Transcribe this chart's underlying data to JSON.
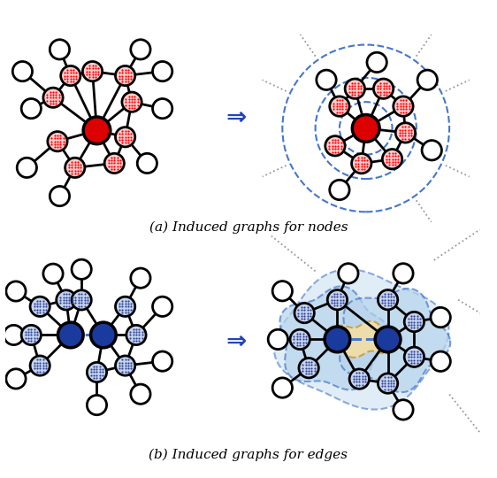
{
  "fig_width": 5.62,
  "fig_height": 5.4,
  "label_a": "(a) Induced graphs for nodes",
  "label_b": "(b) Induced graphs for edges",
  "red_center_color": "#dd0000",
  "red_node_face": "#ffcccc",
  "blue_center_color": "#1a3a9e",
  "blue_node_face": "#c5d5ee",
  "white_node_face": "#ffffff",
  "edge_black": "#111111",
  "circle_blue": "#4477cc",
  "arrow_blue": "#2244bb",
  "gray_dot": "#999999",
  "blob_outer": "#cce0f0",
  "blob_inner": "#b8d4ec",
  "blob_edge": "#4477cc",
  "yellow_face": "#f5dfa0",
  "yellow_edge": "#cc9933"
}
